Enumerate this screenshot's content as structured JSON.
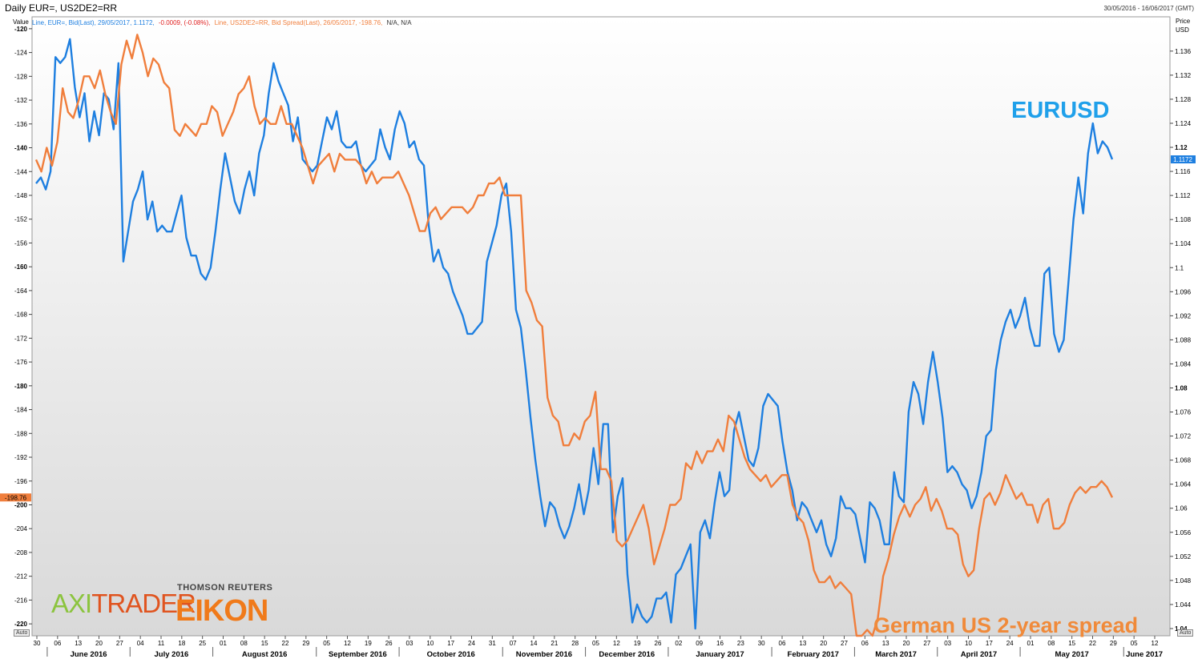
{
  "header": {
    "title": "Daily EUR=, US2DE2=RR",
    "date_range": "30/05/2016 - 16/06/2017 (GMT)"
  },
  "legend": {
    "eur_prefix": "Line, EUR=, Bid(Last), 29/05/2017, 1.1172,",
    "eur_change": "-0.0009, (-0.08%),",
    "spread_text": "Line, US2DE2=RR, Bid Spread(Last), 26/05/2017, -198.76,",
    "na_text": "N/A, N/A"
  },
  "axes": {
    "left_caption": "Value",
    "right_caption": "Price",
    "right_unit": "USD",
    "auto_label": "Auto"
  },
  "annotations": {
    "eurusd": "EURUSD",
    "spread": "German US 2-year spread"
  },
  "logos": {
    "axitrader_a": "AXI",
    "axitrader_rest": "TRADER",
    "thomson_reuters": "THOMSON REUTERS",
    "eikon": "EIKON"
  },
  "chart_data": {
    "type": "line",
    "x_axis": {
      "day_ticks": [
        "30",
        "06",
        "13",
        "20",
        "27",
        "04",
        "11",
        "18",
        "25",
        "01",
        "08",
        "15",
        "22",
        "29",
        "05",
        "12",
        "19",
        "26",
        "03",
        "10",
        "17",
        "24",
        "31",
        "07",
        "14",
        "21",
        "28",
        "05",
        "12",
        "19",
        "26",
        "02",
        "09",
        "16",
        "23",
        "30",
        "06",
        "13",
        "20",
        "27",
        "06",
        "13",
        "20",
        "27",
        "03",
        "10",
        "17",
        "24",
        "01",
        "08",
        "15",
        "22",
        "29",
        "05",
        "12"
      ],
      "months": [
        "June 2016",
        "July 2016",
        "August 2016",
        "September 2016",
        "October 2016",
        "November 2016",
        "December 2016",
        "January 2017",
        "February 2017",
        "March 2017",
        "April 2017",
        "May 2017",
        "June 2017"
      ]
    },
    "left_axis": {
      "ylim": [
        -222,
        -118
      ],
      "ticks": [
        -120,
        -124,
        -128,
        -132,
        -136,
        -140,
        -144,
        -148,
        -152,
        -156,
        -160,
        -164,
        -168,
        -172,
        -176,
        -180,
        -184,
        -188,
        -192,
        -196,
        -200,
        -204,
        -208,
        -212,
        -216,
        -220
      ],
      "bold_ticks": [
        -120,
        -140,
        -160,
        -180,
        -200,
        -220
      ],
      "last_value_label": "-198.76"
    },
    "right_axis": {
      "ylim": [
        1.0388,
        1.1417
      ],
      "ticks": [
        1.04,
        1.044,
        1.048,
        1.052,
        1.056,
        1.06,
        1.064,
        1.068,
        1.072,
        1.076,
        1.08,
        1.084,
        1.088,
        1.092,
        1.096,
        1.1,
        1.104,
        1.108,
        1.112,
        1.116,
        1.12,
        1.124,
        1.128,
        1.132,
        1.136
      ],
      "tick_labels": [
        "1.04",
        "1.044",
        "1.048",
        "1.052",
        "1.056",
        "1.06",
        "1.064",
        "1.068",
        "1.072",
        "1.076",
        "1.08",
        "1.084",
        "1.088",
        "1.092",
        "1.096",
        "1.1",
        "1.104",
        "1.108",
        "1.112",
        "1.116",
        "1.12",
        "1.124",
        "1.128",
        "1.132",
        "1.136"
      ],
      "bold_ticks": [
        1.04,
        1.08,
        1.12
      ],
      "last_value_label": "1.1172"
    },
    "series": [
      {
        "name": "EUR=",
        "axis": "right",
        "color": "#1e7fe0",
        "values": [
          1.114,
          1.115,
          1.113,
          1.116,
          1.135,
          1.134,
          1.135,
          1.138,
          1.13,
          1.125,
          1.129,
          1.121,
          1.126,
          1.122,
          1.129,
          1.128,
          1.123,
          1.134,
          1.101,
          1.106,
          1.111,
          1.113,
          1.116,
          1.108,
          1.111,
          1.106,
          1.107,
          1.106,
          1.106,
          1.109,
          1.112,
          1.105,
          1.102,
          1.102,
          1.099,
          1.098,
          1.1,
          1.106,
          1.113,
          1.119,
          1.115,
          1.111,
          1.109,
          1.113,
          1.116,
          1.112,
          1.119,
          1.122,
          1.129,
          1.134,
          1.131,
          1.129,
          1.127,
          1.121,
          1.125,
          1.118,
          1.117,
          1.116,
          1.117,
          1.121,
          1.125,
          1.123,
          1.126,
          1.121,
          1.12,
          1.12,
          1.121,
          1.117,
          1.116,
          1.117,
          1.118,
          1.123,
          1.12,
          1.118,
          1.123,
          1.126,
          1.124,
          1.12,
          1.121,
          1.118,
          1.117,
          1.107,
          1.101,
          1.103,
          1.1,
          1.099,
          1.096,
          1.094,
          1.092,
          1.089,
          1.089,
          1.09,
          1.091,
          1.101,
          1.104,
          1.107,
          1.112,
          1.114,
          1.106,
          1.093,
          1.09,
          1.083,
          1.075,
          1.068,
          1.062,
          1.057,
          1.061,
          1.06,
          1.057,
          1.055,
          1.057,
          1.06,
          1.064,
          1.059,
          1.063,
          1.07,
          1.064,
          1.074,
          1.074,
          1.056,
          1.062,
          1.065,
          1.049,
          1.041,
          1.044,
          1.042,
          1.041,
          1.042,
          1.045,
          1.045,
          1.046,
          1.041,
          1.049,
          1.05,
          1.052,
          1.054,
          1.04,
          1.056,
          1.058,
          1.055,
          1.061,
          1.066,
          1.062,
          1.063,
          1.073,
          1.076,
          1.072,
          1.068,
          1.067,
          1.07,
          1.077,
          1.079,
          1.078,
          1.077,
          1.071,
          1.066,
          1.063,
          1.058,
          1.061,
          1.06,
          1.058,
          1.056,
          1.058,
          1.054,
          1.052,
          1.055,
          1.062,
          1.06,
          1.06,
          1.059,
          1.055,
          1.051,
          1.061,
          1.06,
          1.058,
          1.054,
          1.054,
          1.066,
          1.062,
          1.061,
          1.076,
          1.081,
          1.079,
          1.074,
          1.081,
          1.086,
          1.081,
          1.075,
          1.066,
          1.067,
          1.066,
          1.064,
          1.063,
          1.06,
          1.062,
          1.066,
          1.072,
          1.073,
          1.083,
          1.088,
          1.091,
          1.093,
          1.09,
          1.092,
          1.095,
          1.09,
          1.087,
          1.087,
          1.099,
          1.1,
          1.089,
          1.086,
          1.088,
          1.098,
          1.108,
          1.115,
          1.109,
          1.119,
          1.124,
          1.119,
          1.121,
          1.12,
          1.118
        ]
      },
      {
        "name": "US2DE2=RR",
        "axis": "left",
        "color": "#f07e3c",
        "values": [
          -142,
          -144,
          -140,
          -143,
          -139,
          -130,
          -134,
          -135,
          -132,
          -128,
          -128,
          -130,
          -127,
          -131,
          -134,
          -136,
          -126,
          -122,
          -125,
          -121,
          -124,
          -128,
          -125,
          -126,
          -129,
          -130,
          -137,
          -138,
          -136,
          -137,
          -138,
          -136,
          -136,
          -133,
          -134,
          -138,
          -136,
          -134,
          -131,
          -130,
          -128,
          -133,
          -136,
          -135,
          -136,
          -136,
          -133,
          -136,
          -136,
          -138,
          -140,
          -143,
          -146,
          -143,
          -142,
          -141,
          -144,
          -141,
          -142,
          -142,
          -142,
          -143,
          -146,
          -144,
          -146,
          -145,
          -145,
          -145,
          -144,
          -146,
          -148,
          -151,
          -154,
          -154,
          -151,
          -150,
          -152,
          -151,
          -150,
          -150,
          -150,
          -151,
          -150,
          -148,
          -148,
          -146,
          -146,
          -145,
          -148,
          -148,
          -148,
          -148,
          -164,
          -166,
          -169,
          -170,
          -182,
          -185,
          -186,
          -190,
          -190,
          -188,
          -189,
          -186,
          -185,
          -181,
          -194,
          -194,
          -196,
          -206,
          -207,
          -206,
          -204,
          -202,
          -200,
          -204,
          -210,
          -207,
          -204,
          -200,
          -200,
          -199,
          -193,
          -194,
          -191,
          -193,
          -191,
          -191,
          -189,
          -191,
          -185,
          -186,
          -189,
          -192,
          -194,
          -195,
          -196,
          -195,
          -197,
          -196,
          -195,
          -195,
          -200,
          -202,
          -203,
          -206,
          -211,
          -213,
          -213,
          -212,
          -214,
          -213,
          -214,
          -215,
          -222,
          -222,
          -221,
          -222,
          -219,
          -212,
          -209,
          -205,
          -202,
          -200,
          -202,
          -200,
          -199,
          -197,
          -201,
          -199,
          -201,
          -204,
          -204,
          -205,
          -210,
          -212,
          -211,
          -204,
          -199,
          -198,
          -200,
          -198,
          -195,
          -197,
          -199,
          -198,
          -200,
          -200,
          -203,
          -200,
          -199,
          -204,
          -204,
          -203,
          -200,
          -198,
          -197,
          -198,
          -197,
          -197,
          -196,
          -197,
          -198.76
        ]
      }
    ],
    "grid": false,
    "legend_placement": "top-left"
  }
}
